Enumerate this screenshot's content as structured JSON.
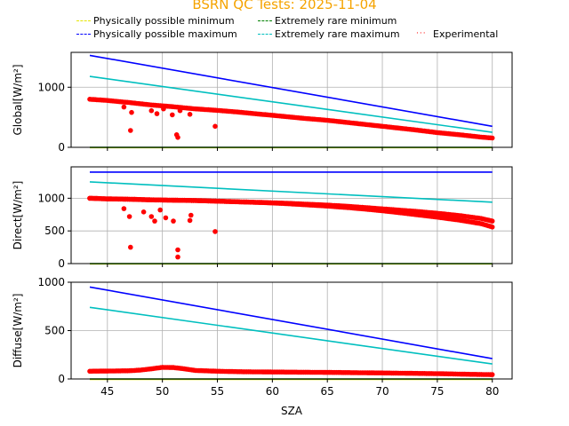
{
  "title": "BSRN QC Tests: 2025-11-04",
  "colors": {
    "title": "#f5a300",
    "phys_min": "#e6e600",
    "phys_max": "#0000ff",
    "rare_min": "#008000",
    "rare_max": "#00bfbf",
    "experimental": "#ff0000"
  },
  "legend": {
    "phys_min": "Physically possible minimum",
    "phys_max": "Physically possible maximum",
    "rare_min": "Extremely rare minimum",
    "rare_max": "Extremely rare maximum",
    "experimental": "Experimental"
  },
  "xlabel": "SZA",
  "chart_data": [
    {
      "type": "line",
      "name": "global",
      "ylabel": "Global[W/m²]",
      "xlim": [
        41.7,
        81.8
      ],
      "ylim": [
        0,
        1580
      ],
      "yticks": [
        0,
        1000
      ],
      "xticks": [
        45,
        50,
        55,
        60,
        65,
        70,
        75,
        80
      ],
      "grid": true,
      "series": [
        {
          "key": "phys_max",
          "x": [
            43.4,
            80.0
          ],
          "y": [
            1530,
            350
          ]
        },
        {
          "key": "rare_max",
          "x": [
            43.4,
            80.0
          ],
          "y": [
            1180,
            250
          ]
        },
        {
          "key": "phys_min",
          "x": [
            43.4,
            80.0
          ],
          "y": [
            -4,
            -4
          ]
        },
        {
          "key": "rare_min",
          "x": [
            43.4,
            80.0
          ],
          "y": [
            0,
            0
          ]
        }
      ],
      "experimental": {
        "x": [
          43.4,
          45,
          47,
          49,
          51,
          53,
          55,
          57,
          59,
          61,
          63,
          65,
          67,
          69,
          71,
          73,
          75,
          77,
          79,
          80
        ],
        "y": [
          800,
          780,
          745,
          705,
          675,
          640,
          615,
          585,
          550,
          515,
          480,
          450,
          410,
          370,
          330,
          290,
          245,
          210,
          170,
          155
        ],
        "extra": [
          [
            46.5,
            670
          ],
          [
            47.2,
            580
          ],
          [
            47.1,
            280
          ],
          [
            49.0,
            610
          ],
          [
            49.5,
            560
          ],
          [
            50.1,
            640
          ],
          [
            50.9,
            540
          ],
          [
            51.3,
            210
          ],
          [
            51.4,
            165
          ],
          [
            51.6,
            610
          ],
          [
            52.5,
            550
          ],
          [
            54.8,
            350
          ]
        ]
      }
    },
    {
      "type": "line",
      "name": "direct",
      "ylabel": "Direct[W/m²]",
      "xlim": [
        41.7,
        81.8
      ],
      "ylim": [
        0,
        1480
      ],
      "yticks": [
        0,
        500,
        1000
      ],
      "xticks": [
        45,
        50,
        55,
        60,
        65,
        70,
        75,
        80
      ],
      "grid": true,
      "series": [
        {
          "key": "phys_max",
          "x": [
            43.4,
            80.0
          ],
          "y": [
            1400,
            1400
          ]
        },
        {
          "key": "rare_max",
          "x": [
            43.4,
            80.0
          ],
          "y": [
            1250,
            940
          ]
        },
        {
          "key": "phys_min",
          "x": [
            43.4,
            80.0
          ],
          "y": [
            -4,
            -4
          ]
        },
        {
          "key": "rare_min",
          "x": [
            43.4,
            80.0
          ],
          "y": [
            0,
            0
          ]
        }
      ],
      "experimental": {
        "x": [
          43.4,
          45,
          47,
          49,
          51,
          53,
          55,
          57,
          59,
          61,
          63,
          65,
          67,
          69,
          71,
          73,
          75,
          77,
          79,
          80
        ],
        "y": [
          1000,
          990,
          985,
          975,
          970,
          965,
          955,
          945,
          935,
          920,
          900,
          880,
          855,
          825,
          790,
          750,
          710,
          665,
          610,
          560
        ],
        "y2": [
          1000,
          990,
          985,
          975,
          970,
          965,
          955,
          945,
          935,
          925,
          910,
          895,
          875,
          850,
          825,
          800,
          770,
          735,
          690,
          650
        ],
        "extra": [
          [
            46.5,
            840
          ],
          [
            47.0,
            720
          ],
          [
            47.1,
            250
          ],
          [
            48.3,
            790
          ],
          [
            49.0,
            720
          ],
          [
            49.3,
            650
          ],
          [
            49.8,
            820
          ],
          [
            50.3,
            700
          ],
          [
            51.0,
            650
          ],
          [
            51.4,
            210
          ],
          [
            51.4,
            100
          ],
          [
            52.5,
            660
          ],
          [
            52.6,
            740
          ],
          [
            54.8,
            490
          ]
        ]
      }
    },
    {
      "type": "line",
      "name": "diffuse",
      "ylabel": "Diffuse[W/m²]",
      "xlim": [
        41.7,
        81.8
      ],
      "ylim": [
        0,
        1000
      ],
      "yticks": [
        0,
        500,
        1000
      ],
      "xticks": [
        45,
        50,
        55,
        60,
        65,
        70,
        75,
        80
      ],
      "grid": true,
      "series": [
        {
          "key": "phys_max",
          "x": [
            43.4,
            80.0
          ],
          "y": [
            950,
            210
          ]
        },
        {
          "key": "rare_max",
          "x": [
            43.4,
            80.0
          ],
          "y": [
            740,
            155
          ]
        },
        {
          "key": "phys_min",
          "x": [
            43.4,
            80.0
          ],
          "y": [
            -4,
            -4
          ]
        },
        {
          "key": "rare_min",
          "x": [
            43.4,
            80.0
          ],
          "y": [
            0,
            0
          ]
        }
      ],
      "experimental": {
        "x": [
          43.4,
          45,
          47,
          48,
          49,
          50,
          51,
          52,
          53,
          55,
          57,
          60,
          65,
          70,
          75,
          78,
          80
        ],
        "y": [
          80,
          82,
          85,
          92,
          105,
          120,
          118,
          105,
          88,
          80,
          75,
          72,
          68,
          62,
          55,
          48,
          45
        ],
        "extra": []
      }
    }
  ]
}
